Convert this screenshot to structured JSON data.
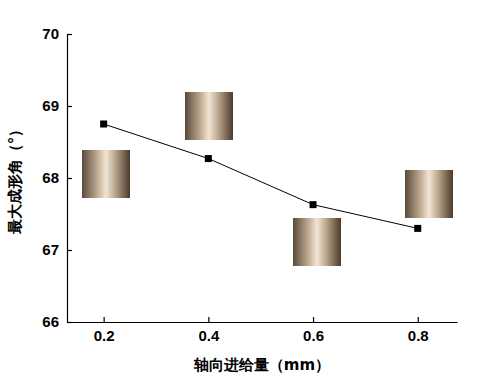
{
  "chart_data": {
    "type": "line",
    "x_label": "轴向进给量（mm）",
    "y_label": "最大成形角（°）",
    "x": [
      0.2,
      0.4,
      0.6,
      0.8
    ],
    "series": [
      {
        "name": null,
        "color": "#000000",
        "marker": "square",
        "line_style": "solid",
        "values": [
          68.75,
          68.27,
          67.63,
          67.3
        ]
      }
    ],
    "xlim": [
      0.13,
      0.875
    ],
    "xticks": [
      0.2,
      0.4,
      0.6,
      0.8
    ],
    "ylim": [
      66,
      70
    ],
    "yticks": [
      66,
      67,
      68,
      69,
      70
    ],
    "grid": false
  }
}
